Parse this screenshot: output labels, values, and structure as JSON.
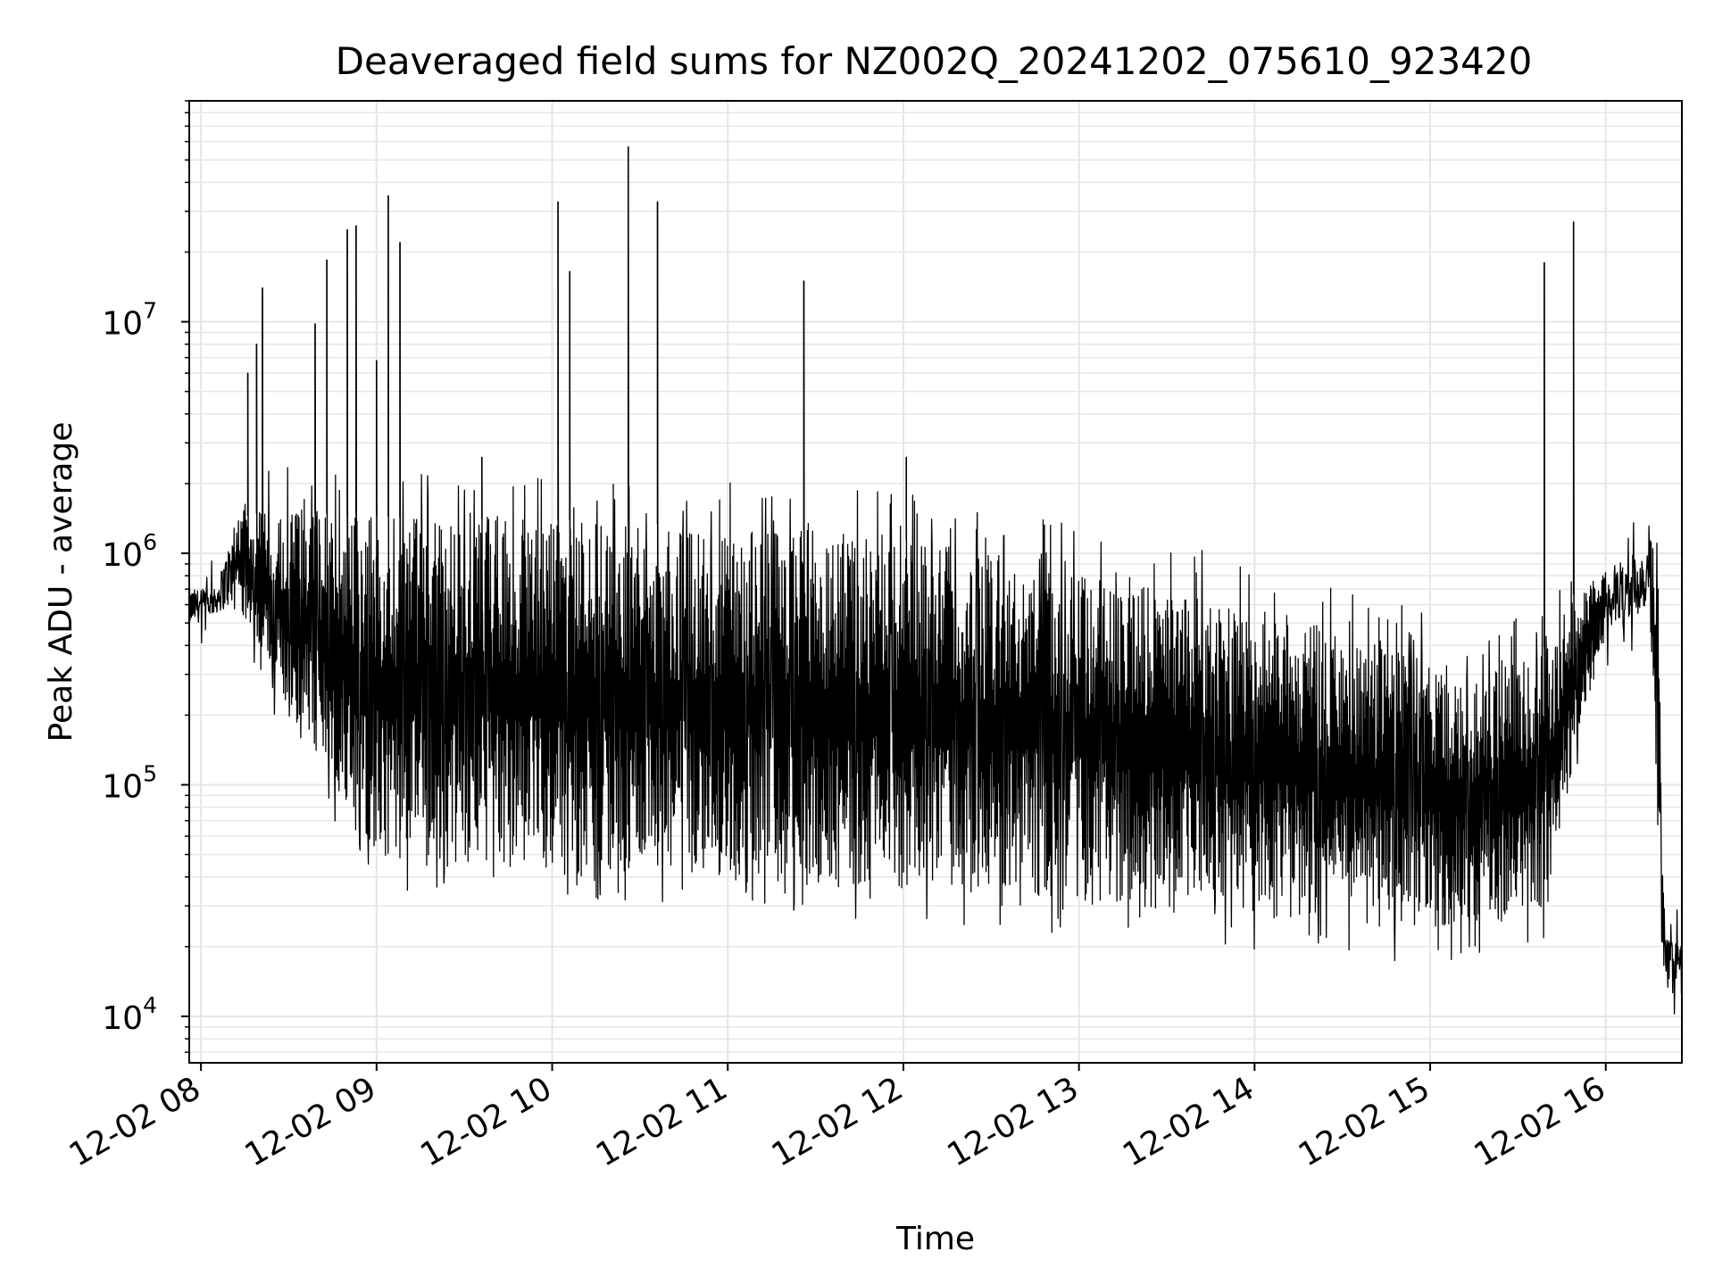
{
  "chart_data": {
    "type": "line",
    "title": "Deaveraged field sums for NZ002Q_20241202_075610_923420",
    "xlabel": "Time",
    "ylabel": "Peak ADU - average",
    "xscale": "time",
    "yscale": "log",
    "xlim": [
      "2024-12-02 07:56",
      "2024-12-02 16:26"
    ],
    "ylim": [
      6300,
      90000000
    ],
    "grid": true,
    "x_tick_labels": [
      "12-02 08",
      "12-02 09",
      "12-02 10",
      "12-02 11",
      "12-02 12",
      "12-02 13",
      "12-02 14",
      "12-02 15",
      "12-02 16"
    ],
    "y_tick_labels": [
      {
        "base": "10",
        "exp": "4"
      },
      {
        "base": "10",
        "exp": "5"
      },
      {
        "base": "10",
        "exp": "6"
      },
      {
        "base": "10",
        "exp": "7"
      }
    ],
    "series": [
      {
        "color": "#000000",
        "envelope": {
          "x": [
            "2024-12-02 07:56",
            "2024-12-02 08:05",
            "2024-12-02 08:12",
            "2024-12-02 08:20",
            "2024-12-02 08:30",
            "2024-12-02 09:00",
            "2024-12-02 09:30",
            "2024-12-02 10:00",
            "2024-12-02 10:30",
            "2024-12-02 11:00",
            "2024-12-02 11:30",
            "2024-12-02 12:00",
            "2024-12-02 12:30",
            "2024-12-02 13:00",
            "2024-12-02 13:30",
            "2024-12-02 14:00",
            "2024-12-02 14:30",
            "2024-12-02 15:00",
            "2024-12-02 15:20",
            "2024-12-02 15:40",
            "2024-12-02 15:50",
            "2024-12-02 16:00",
            "2024-12-02 16:10",
            "2024-12-02 16:15",
            "2024-12-02 16:18",
            "2024-12-02 16:20",
            "2024-12-02 16:26"
          ],
          "low": [
            480000,
            550000,
            600000,
            400000,
            200000,
            50000,
            45000,
            40000,
            40000,
            38000,
            36000,
            35000,
            34000,
            31000,
            29000,
            27000,
            25000,
            24000,
            26000,
            30000,
            150000,
            450000,
            520000,
            600000,
            50000,
            13000,
            14000
          ],
          "high": [
            700000,
            700000,
            1400000,
            1500000,
            1500000,
            1450000,
            1400000,
            1400000,
            1350000,
            1300000,
            1250000,
            1150000,
            1000000,
            850000,
            700000,
            600000,
            450000,
            350000,
            300000,
            400000,
            700000,
            850000,
            1000000,
            1200000,
            800000,
            22000,
            20000
          ]
        },
        "spikes": [
          {
            "x": "2024-12-02 08:16",
            "y": 6000000
          },
          {
            "x": "2024-12-02 08:19",
            "y": 8000000
          },
          {
            "x": "2024-12-02 08:21",
            "y": 14000000
          },
          {
            "x": "2024-12-02 08:39",
            "y": 9800000
          },
          {
            "x": "2024-12-02 08:43",
            "y": 18500000
          },
          {
            "x": "2024-12-02 08:50",
            "y": 25000000
          },
          {
            "x": "2024-12-02 08:53",
            "y": 26000000
          },
          {
            "x": "2024-12-02 09:00",
            "y": 6800000
          },
          {
            "x": "2024-12-02 09:04",
            "y": 35000000
          },
          {
            "x": "2024-12-02 09:08",
            "y": 22000000
          },
          {
            "x": "2024-12-02 09:36",
            "y": 2600000
          },
          {
            "x": "2024-12-02 10:02",
            "y": 33000000
          },
          {
            "x": "2024-12-02 10:06",
            "y": 16500000
          },
          {
            "x": "2024-12-02 10:26",
            "y": 57000000
          },
          {
            "x": "2024-12-02 10:36",
            "y": 33000000
          },
          {
            "x": "2024-12-02 11:26",
            "y": 15000000
          },
          {
            "x": "2024-12-02 12:01",
            "y": 2600000
          },
          {
            "x": "2024-12-02 15:39",
            "y": 18000000
          },
          {
            "x": "2024-12-02 15:49",
            "y": 27000000
          }
        ]
      }
    ]
  }
}
